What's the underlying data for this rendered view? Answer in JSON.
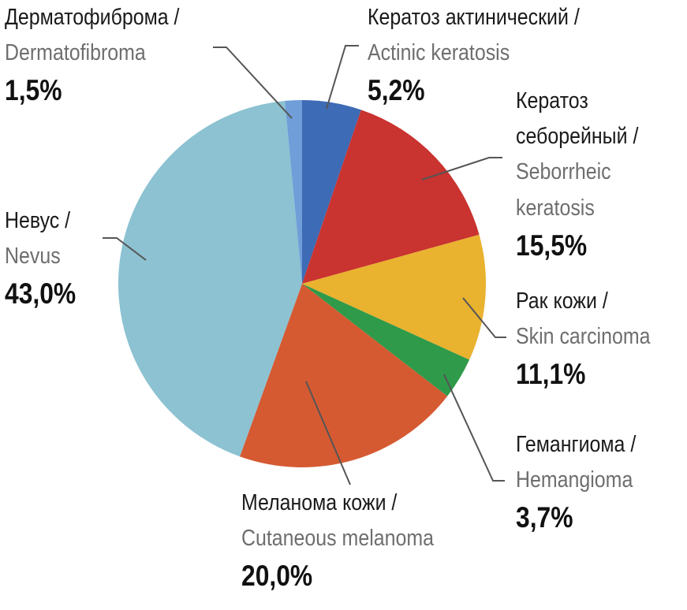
{
  "chart_data": {
    "type": "pie",
    "slices": [
      {
        "ru": "Кератоз актинический /",
        "en": "Actinic keratosis",
        "value": 5.2,
        "label": "5,2%",
        "color": "#3e6bb5"
      },
      {
        "ru": "Кератоз",
        "ru2": "себорейный /",
        "en": "Seborrheic",
        "en2": "keratosis",
        "value": 15.5,
        "label": "15,5%",
        "color": "#c93330"
      },
      {
        "ru": "Рак кожи /",
        "en": "Skin carcinoma",
        "value": 11.1,
        "label": "11,1%",
        "color": "#e9b22f"
      },
      {
        "ru": "Гемангиома /",
        "en": "Hemangioma",
        "value": 3.7,
        "label": "3,7%",
        "color": "#2f9a49"
      },
      {
        "ru": "Меланома кожи /",
        "en": "Cutaneous melanoma",
        "value": 20.0,
        "label": "20,0%",
        "color": "#d55a32"
      },
      {
        "ru": "Невус /",
        "en": "Nevus",
        "value": 43.0,
        "label": "43,0%",
        "color": "#8cc2d2"
      },
      {
        "ru": "Дерматофиброма /",
        "en": "Dermatofibroma",
        "value": 1.5,
        "label": "1,5%",
        "color": "#6f9ed8"
      }
    ]
  }
}
